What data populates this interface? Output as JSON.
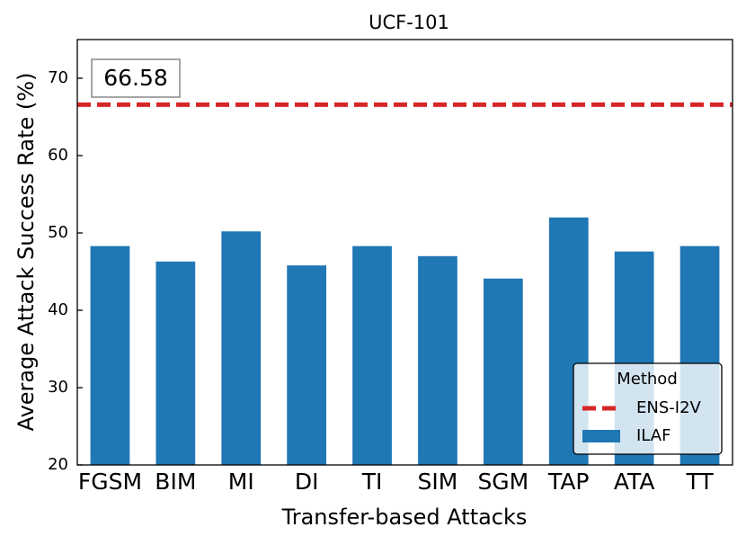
{
  "chart_data": {
    "type": "bar",
    "title": "UCF-101",
    "xlabel": "Transfer-based Attacks",
    "ylabel": "Average Attack Success Rate (%)",
    "categories": [
      "FGSM",
      "BIM",
      "MI",
      "DI",
      "TI",
      "SIM",
      "SGM",
      "TAP",
      "ATA",
      "TT"
    ],
    "series": [
      {
        "name": "ILAF",
        "color": "#1f77b4",
        "values": [
          48.3,
          46.3,
          50.2,
          45.8,
          48.3,
          47.0,
          44.1,
          52.0,
          47.6,
          48.3
        ]
      }
    ],
    "reference_lines": [
      {
        "name": "ENS-I2V",
        "color": "#d62728",
        "value": 66.58
      }
    ],
    "ylim": [
      20,
      75
    ],
    "yticks": [
      20,
      30,
      40,
      50,
      60,
      70
    ],
    "legend_title": "Method",
    "legend_position": "lower right",
    "grid": false
  }
}
